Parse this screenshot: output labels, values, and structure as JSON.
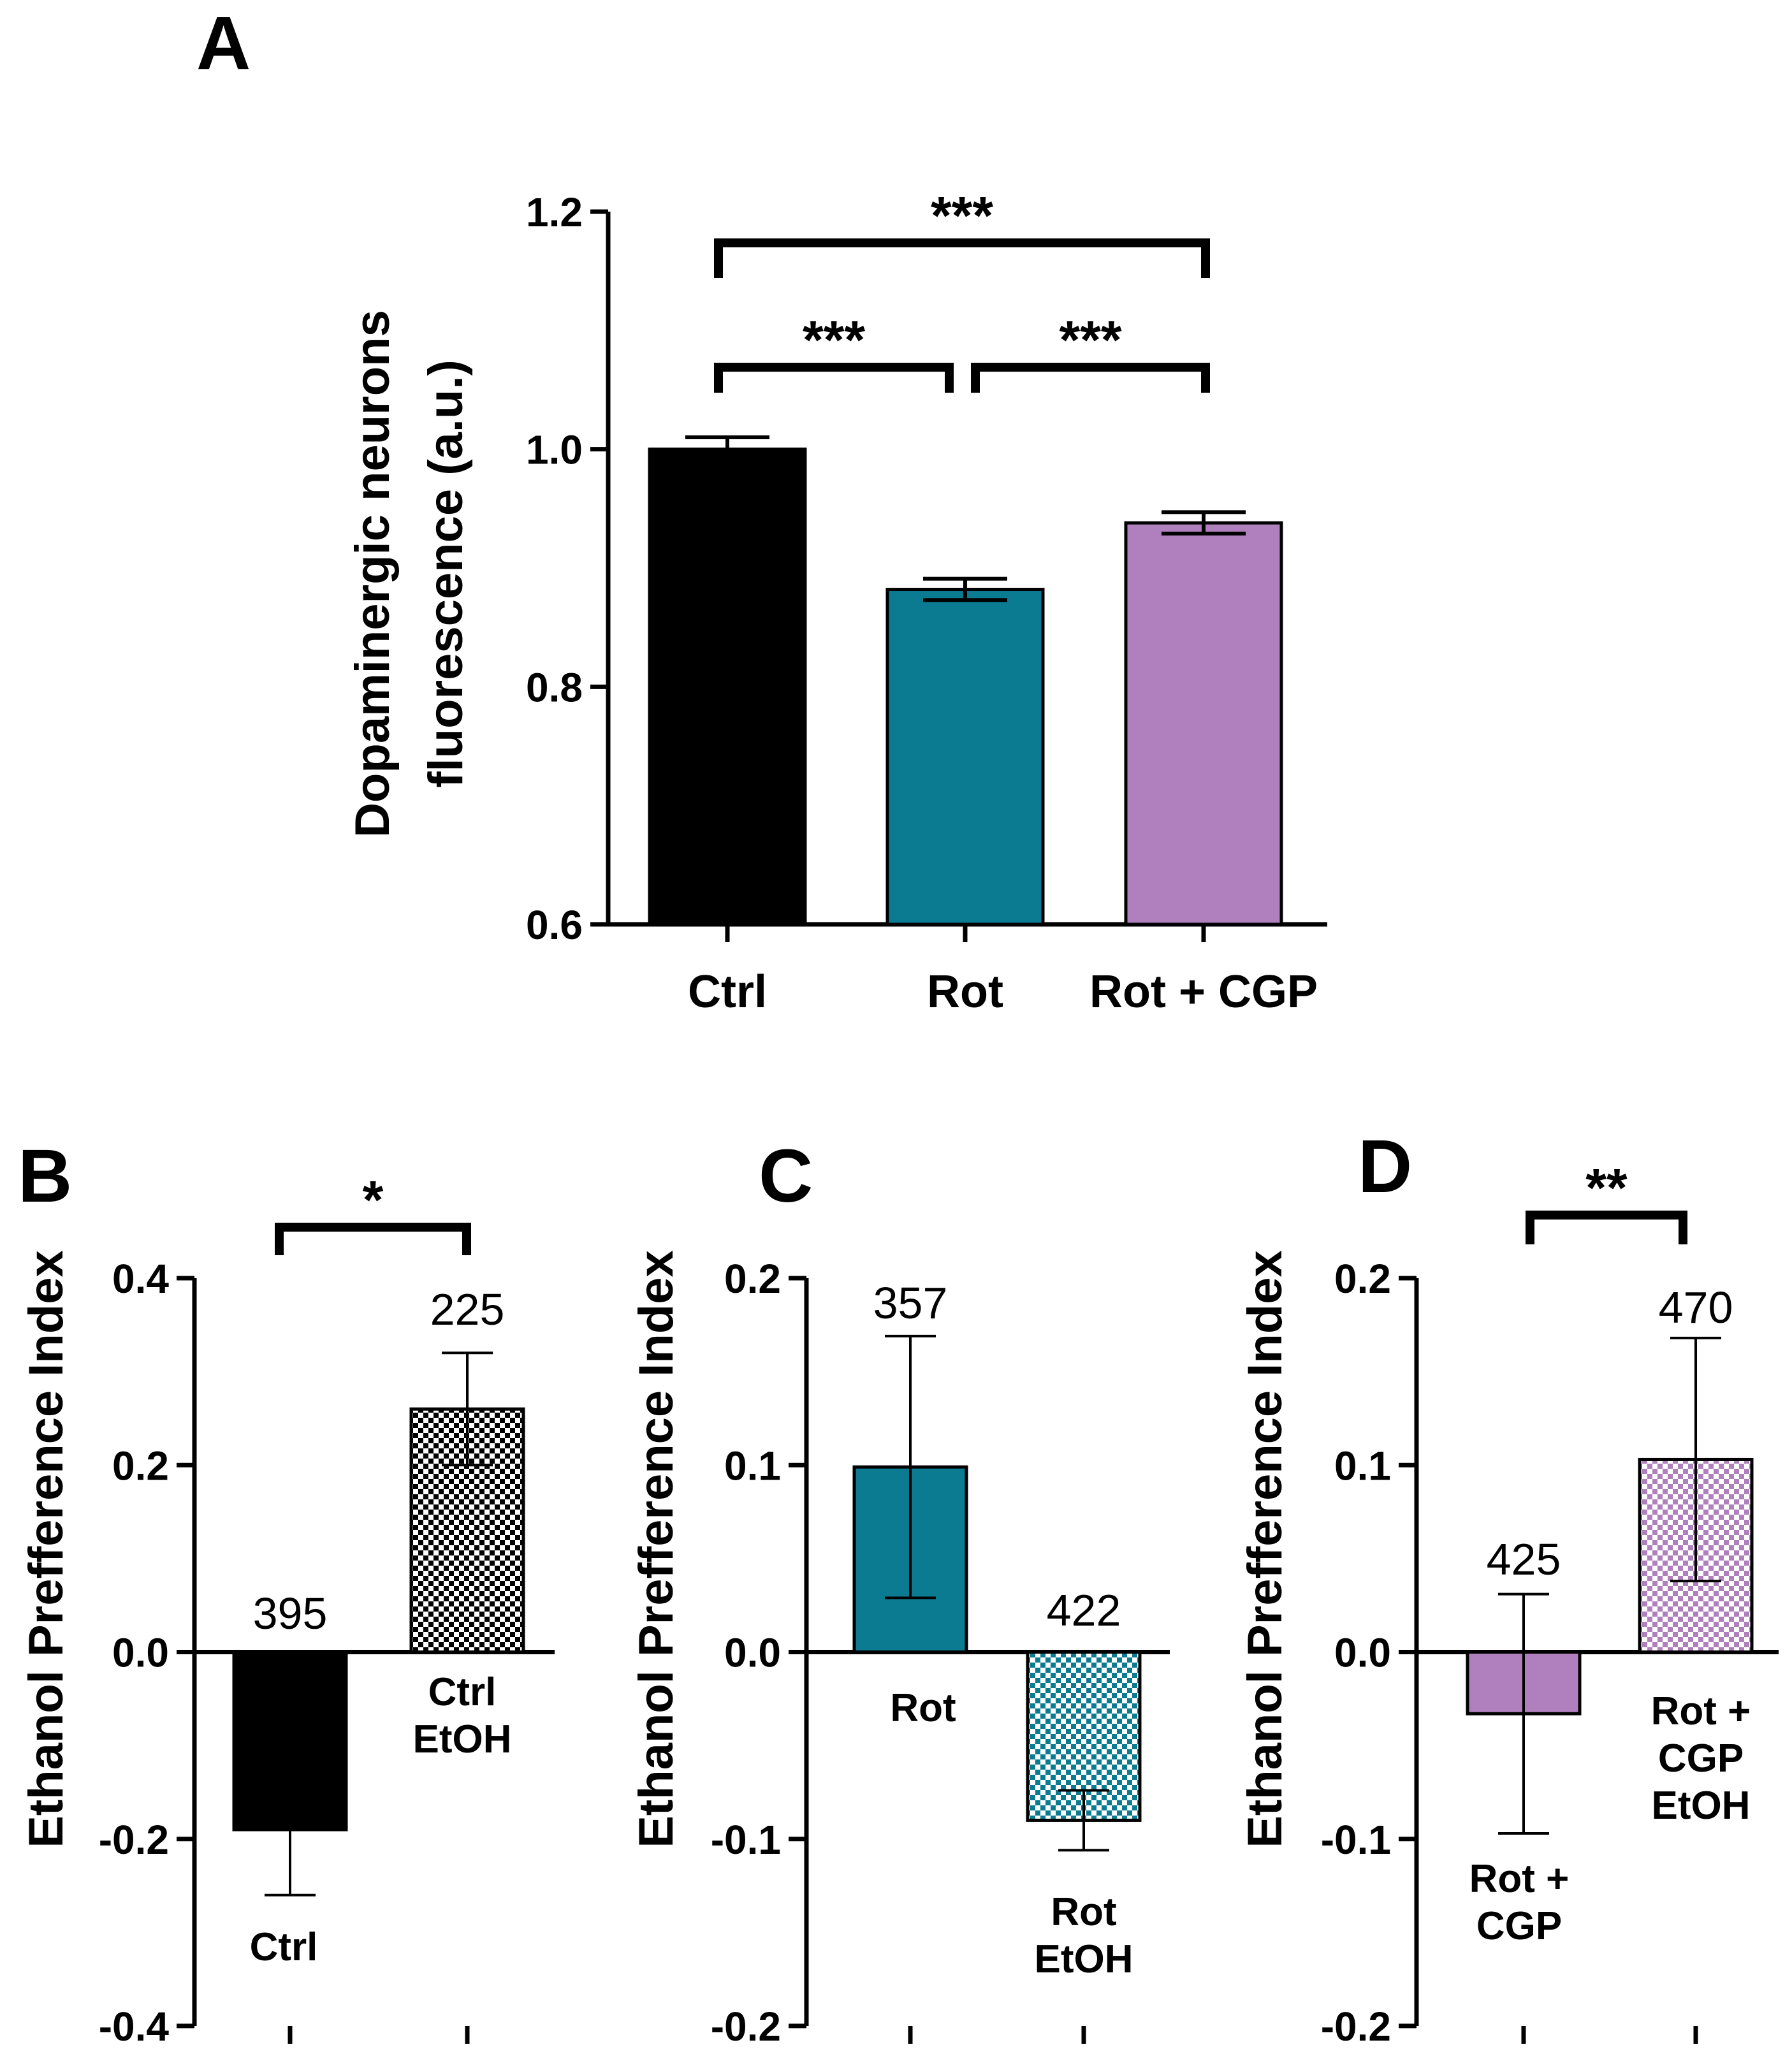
{
  "chart_data": [
    {
      "panel": "A",
      "type": "bar",
      "ylabel_lines": [
        "Dopaminergic neurons",
        "fluorescence (a.u.)"
      ],
      "ylim": [
        0.6,
        1.2
      ],
      "yticks": [
        "0.6",
        "0.8",
        "1.0",
        "1.2"
      ],
      "categories": [
        "Ctrl",
        "Rot",
        "Rot + CGP"
      ],
      "values": [
        1.0,
        0.882,
        0.938
      ],
      "errors": [
        0.01,
        0.009,
        0.009
      ],
      "colors": [
        "#000000",
        "#0b7b91",
        "#b07fbd"
      ],
      "patterns": [
        "solid",
        "solid",
        "solid"
      ],
      "significance": [
        {
          "from": 0,
          "to": 1,
          "label": "***"
        },
        {
          "from": 1,
          "to": 2,
          "label": "***"
        },
        {
          "from": 0,
          "to": 2,
          "label": "***"
        }
      ]
    },
    {
      "panel": "B",
      "type": "bar",
      "ylabel": "Ethanol Prefference Index",
      "ylim": [
        -0.4,
        0.4
      ],
      "yticks": [
        "-0.4",
        "-0.2",
        "0.0",
        "0.2",
        "0.4"
      ],
      "categories": [
        "Ctrl",
        "Ctrl EtOH"
      ],
      "category_lines": [
        [
          "Ctrl"
        ],
        [
          "Ctrl",
          "EtOH"
        ]
      ],
      "values": [
        -0.19,
        0.26
      ],
      "errors": [
        0.07,
        0.06
      ],
      "n_labels": [
        "395",
        "225"
      ],
      "colors": [
        "#000000",
        "#000000"
      ],
      "patterns": [
        "solid",
        "checker"
      ],
      "significance": [
        {
          "from": 0,
          "to": 1,
          "label": "*"
        }
      ]
    },
    {
      "panel": "C",
      "type": "bar",
      "ylabel": "Ethanol Prefference Index",
      "ylim": [
        -0.2,
        0.2
      ],
      "yticks": [
        "-0.2",
        "-0.1",
        "0.0",
        "0.1",
        "0.2"
      ],
      "categories": [
        "Rot",
        "Rot EtOH"
      ],
      "category_lines": [
        [
          "Rot"
        ],
        [
          "Rot",
          "EtOH"
        ]
      ],
      "values": [
        0.099,
        -0.09
      ],
      "errors": [
        0.07,
        0.016
      ],
      "n_labels": [
        "357",
        "422"
      ],
      "colors": [
        "#0b7b91",
        "#0b7b91"
      ],
      "patterns": [
        "solid",
        "checker"
      ],
      "significance": []
    },
    {
      "panel": "D",
      "type": "bar",
      "ylabel": "Ethanol Prefference Index",
      "ylim": [
        -0.2,
        0.2
      ],
      "yticks": [
        "-0.2",
        "-0.1",
        "0.0",
        "0.1",
        "0.2"
      ],
      "categories": [
        "Rot + CGP",
        "Rot + CGP EtOH"
      ],
      "category_lines": [
        [
          "Rot +",
          "CGP"
        ],
        [
          "Rot +",
          "CGP",
          "EtOH"
        ]
      ],
      "values": [
        -0.033,
        0.103
      ],
      "errors": [
        0.064,
        0.065
      ],
      "n_labels": [
        "425",
        "470"
      ],
      "colors": [
        "#b07fbd",
        "#b07fbd"
      ],
      "patterns": [
        "solid",
        "checker"
      ],
      "significance": [
        {
          "from": 0,
          "to": 1,
          "label": "**"
        }
      ]
    }
  ]
}
